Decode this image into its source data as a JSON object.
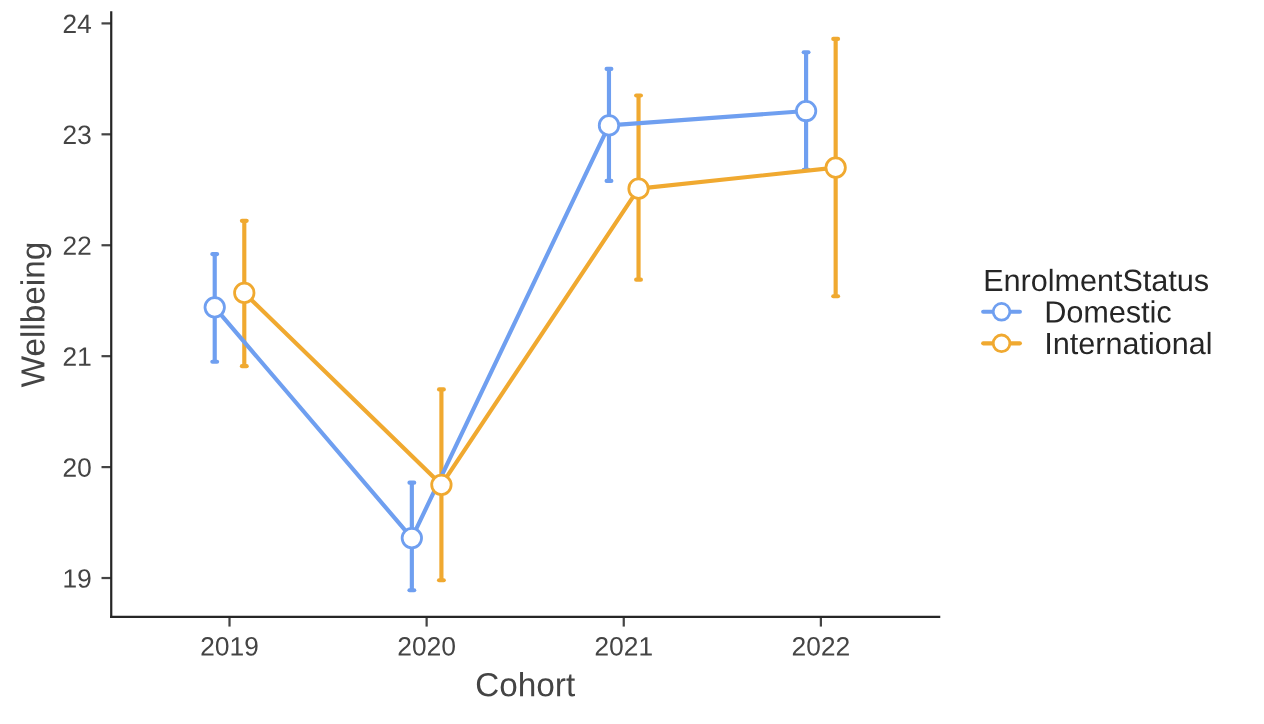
{
  "chart_data": {
    "type": "line",
    "xlabel": "Cohort",
    "ylabel": "Wellbeing",
    "legend_title": "EnrolmentStatus",
    "categories": [
      "2019",
      "2020",
      "2021",
      "2022"
    ],
    "series": [
      {
        "name": "Domestic",
        "color": "#6f9ff0",
        "values": [
          21.44,
          19.36,
          23.08,
          23.21
        ],
        "errors": [
          [
            20.95,
            21.92
          ],
          [
            18.89,
            19.86
          ],
          [
            22.58,
            23.59
          ],
          [
            22.68,
            23.74
          ]
        ]
      },
      {
        "name": "International",
        "color": "#f0a930",
        "values": [
          21.57,
          19.84,
          22.51,
          22.7
        ],
        "errors": [
          [
            20.91,
            22.22
          ],
          [
            18.98,
            20.7
          ],
          [
            21.69,
            23.35
          ],
          [
            21.54,
            23.86
          ]
        ]
      }
    ],
    "ylim": [
      18.65,
      24.1
    ],
    "yticks": [
      19,
      20,
      21,
      22,
      23,
      24
    ],
    "grid": false,
    "legend": "right",
    "marker": "circle",
    "line_style": "solid"
  }
}
